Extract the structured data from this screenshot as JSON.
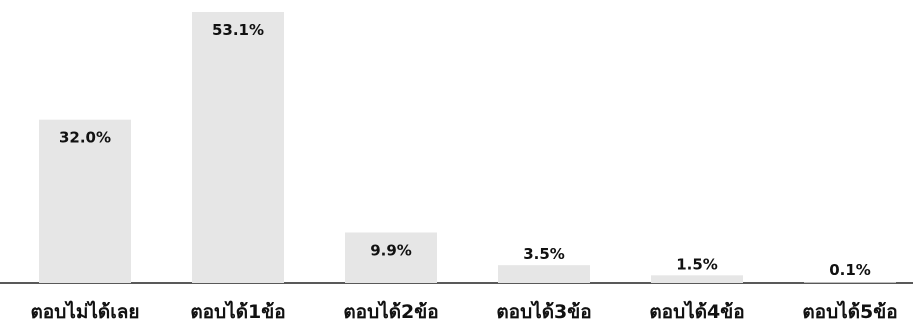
{
  "chart_data": {
    "type": "bar",
    "categories": [
      "ตอบไม่ได้เลย",
      "ตอบได้1ข้อ",
      "ตอบได้2ข้อ",
      "ตอบได้3ข้อ",
      "ตอบได้4ข้อ",
      "ตอบได้5ข้อ"
    ],
    "values": [
      32.0,
      53.1,
      9.9,
      3.5,
      1.5,
      0.1
    ],
    "value_labels": [
      "32.0%",
      "53.1%",
      "9.9%",
      "3.5%",
      "1.5%",
      "0.1%"
    ],
    "ylim": [
      0,
      53.1
    ],
    "grid": false,
    "legend": "none",
    "bar_color": "#e6e6e6"
  }
}
